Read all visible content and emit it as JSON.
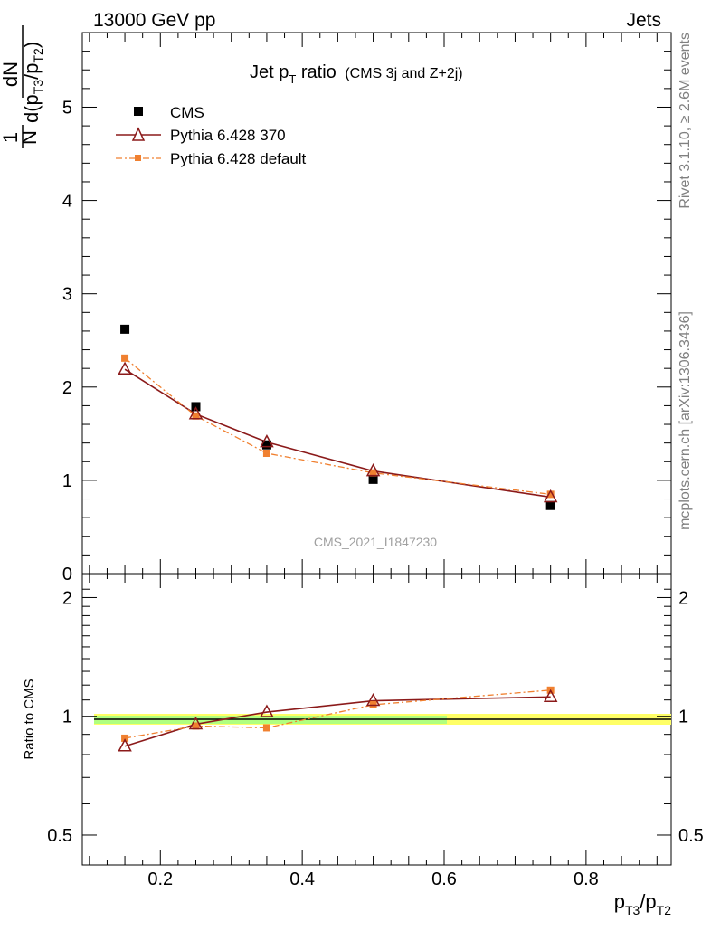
{
  "header": {
    "left": "13000 GeV pp",
    "right": "Jets"
  },
  "side_text": {
    "top": "Rivet 3.1.10, ≥ 2.6M events",
    "bottom": "mcplots.cern.ch [arXiv:1306.3436]"
  },
  "watermark": "CMS_2021_I1847230",
  "main_title": {
    "main": "Jet p",
    "sub": "T",
    "after": " ratio",
    "small": "(CMS 3j and Z+2j)"
  },
  "y_label_main": {
    "one": "1",
    "n": "N",
    "dn": "dN",
    "d": "d(p",
    "sub1": "T3",
    "slash": "/p",
    "sub2": "T2",
    "close": ")"
  },
  "y_label_ratio": "Ratio to CMS",
  "x_label": {
    "p1": "p",
    "s1": "T3",
    "p2": "/p",
    "s2": "T2"
  },
  "colors": {
    "cms": "#000000",
    "p370": "#8b1a1a",
    "pdef": "#f08030",
    "band_yellow": "#ffff66",
    "band_green": "#b0ff80"
  },
  "chart_data": [
    {
      "type": "scatter",
      "panel": "main",
      "x": [
        0.15,
        0.25,
        0.35,
        0.5,
        0.75
      ],
      "series": [
        {
          "name": "CMS",
          "values": [
            2.62,
            1.79,
            1.38,
            1.01,
            0.73
          ],
          "marker": "square"
        },
        {
          "name": "Pythia 6.428 370",
          "values": [
            2.19,
            1.71,
            1.41,
            1.1,
            0.82
          ],
          "marker": "open-triangle",
          "line": "solid"
        },
        {
          "name": "Pythia 6.428 default",
          "values": [
            2.31,
            1.69,
            1.29,
            1.08,
            0.85
          ],
          "marker": "small-square",
          "line": "dash-dot"
        }
      ],
      "xlim": [
        0.09,
        0.92
      ],
      "ylim": [
        0,
        5.8
      ],
      "yticks": [
        "0",
        "1",
        "2",
        "3",
        "4",
        "5"
      ],
      "xticks": [
        "0.2",
        "0.4",
        "0.6",
        "0.8"
      ],
      "legend_position": "top-left"
    },
    {
      "type": "line",
      "panel": "ratio",
      "x": [
        0.15,
        0.25,
        0.35,
        0.5,
        0.75
      ],
      "series": [
        {
          "name": "Pythia 6.428 370",
          "values": [
            0.84,
            0.955,
            1.025,
            1.095,
            1.12
          ]
        },
        {
          "name": "Pythia 6.428 default",
          "values": [
            0.88,
            0.945,
            0.935,
            1.07,
            1.165
          ]
        }
      ],
      "reference": 1.0,
      "log_scale": true,
      "ylim": [
        0.42,
        2.3
      ],
      "yticks": [
        "0.5",
        "1",
        "2"
      ],
      "xticks": [
        "0.2",
        "0.4",
        "0.6",
        "0.8"
      ]
    }
  ]
}
